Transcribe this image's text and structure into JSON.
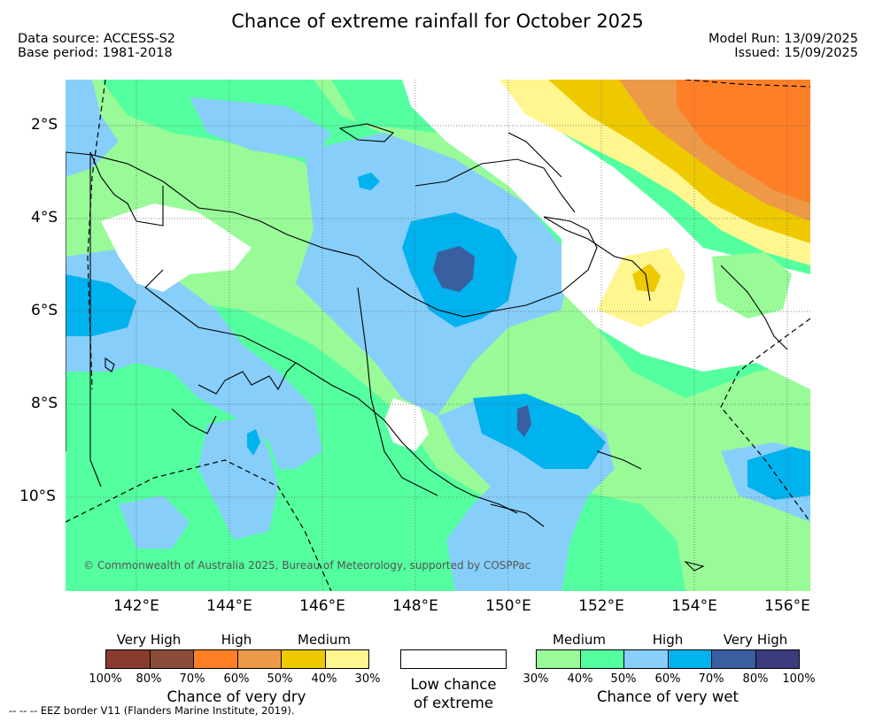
{
  "title": "Chance of extreme rainfall for October 2025",
  "data_source": "Data source: ACCESS-S2",
  "base_period": "Base period: 1981-2018",
  "model_run": "Model Run: 13/09/2025",
  "issued": "Issued: 15/09/2025",
  "lat_labels": [
    "2°S",
    "4°S",
    "6°S",
    "8°S",
    "10°S"
  ],
  "lon_labels": [
    "142°E",
    "144°E",
    "146°E",
    "148°E",
    "150°E",
    "152°E",
    "154°E",
    "156°E"
  ],
  "copyright": "© Commonwealth of Australia 2025, Bureau of Meteorology, supported by COSPPac",
  "dry_legend": {
    "categories": [
      "Very High",
      "High",
      "Medium"
    ],
    "percents": [
      "100%",
      "80%",
      "70%",
      "60%",
      "50%",
      "40%",
      "30%"
    ],
    "colors": [
      "#8b3a30",
      "#8b4c3a",
      "#ff7f27",
      "#ec9a48",
      "#eec900",
      "#fff68f"
    ],
    "caption": "Chance of very dry"
  },
  "neutral_legend": {
    "caption_line1": "Low chance",
    "caption_line2": "of extreme",
    "color": "#ffffff"
  },
  "wet_legend": {
    "categories": [
      "Medium",
      "High",
      "Very High"
    ],
    "percents": [
      "30%",
      "40%",
      "50%",
      "60%",
      "70%",
      "80%",
      "100%"
    ],
    "colors": [
      "#98fb98",
      "#54ff9f",
      "#87cefa",
      "#00b2ee",
      "#3a5fa0",
      "#3b3b7e"
    ],
    "caption": "Chance of very wet"
  },
  "eez_note": "--  --  -- EEZ border V11 (Flanders Marine Institute, 2019)."
}
